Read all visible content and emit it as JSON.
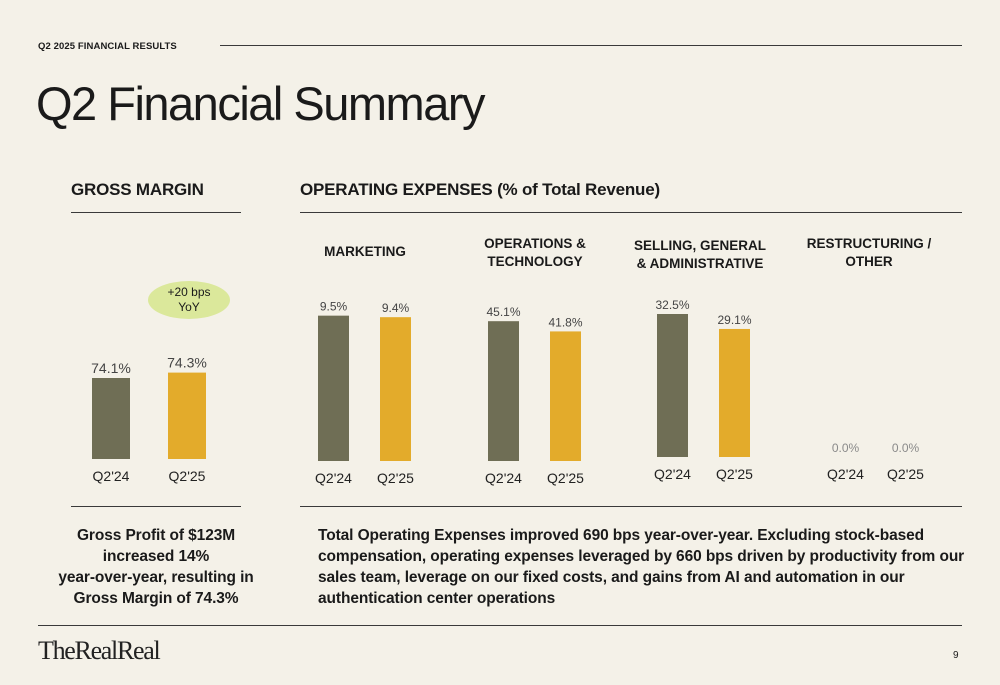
{
  "header": {
    "eyebrow": "Q2 2025 FINANCIAL RESULTS",
    "title": "Q2 Financial Summary"
  },
  "sections": {
    "gross_margin_title": "GROSS MARGIN",
    "opex_title": "OPERATING EXPENSES (% of Total Revenue)"
  },
  "badge": {
    "line1": "+20 bps",
    "line2": "YoY"
  },
  "captions": {
    "gross_margin": [
      "Gross Profit of $123M",
      "increased 14%",
      "year-over-year, resulting in",
      "Gross Margin of 74.3%"
    ],
    "opex": [
      "Total Operating Expenses improved 690 bps year-over-year. Excluding stock-based",
      "compensation, operating expenses leveraged by 660 bps driven by productivity from our",
      "sales team, leverage on our fixed costs, and gains from AI and automation in our",
      "authentication center operations"
    ]
  },
  "footer": {
    "logo": "TheRealReal",
    "page": "9"
  },
  "colors": {
    "prior": "#6f6e55",
    "current": "#e3ab2b",
    "badge": "#dbe89b",
    "background": "#f4f1e8"
  },
  "chart_data": [
    {
      "type": "bar",
      "title": "",
      "categories": [
        "Q2'24",
        "Q2'25"
      ],
      "series": [
        {
          "values": [
            74.1,
            74.3
          ]
        }
      ],
      "labels": [
        "74.1%",
        "74.3%"
      ]
    },
    {
      "type": "bar",
      "title": "MARKETING",
      "categories": [
        "Q2'24",
        "Q2'25"
      ],
      "series": [
        {
          "values": [
            9.5,
            9.4
          ]
        }
      ],
      "labels": [
        "9.5%",
        "9.4%"
      ]
    },
    {
      "type": "bar",
      "title": "OPERATIONS & TECHNOLOGY",
      "categories": [
        "Q2'24",
        "Q2'25"
      ],
      "series": [
        {
          "values": [
            45.1,
            41.8
          ]
        }
      ],
      "labels": [
        "45.1%",
        "41.8%"
      ]
    },
    {
      "type": "bar",
      "title": "SELLING, GENERAL & ADMINISTRATIVE",
      "categories": [
        "Q2'24",
        "Q2'25"
      ],
      "series": [
        {
          "values": [
            32.5,
            29.1
          ]
        }
      ],
      "labels": [
        "32.5%",
        "29.1%"
      ]
    },
    {
      "type": "bar",
      "title": "RESTRUCTURING / OTHER",
      "categories": [
        "Q2'24",
        "Q2'25"
      ],
      "series": [
        {
          "values": [
            0.0,
            0.0
          ]
        }
      ],
      "labels": [
        "0.0%",
        "0.0%"
      ]
    }
  ]
}
